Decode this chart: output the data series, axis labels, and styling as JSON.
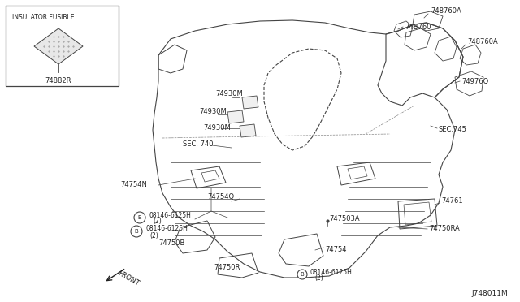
{
  "diagram_id": "J748011M",
  "bg_color": "#ffffff",
  "line_color": "#444444",
  "text_color": "#222222",
  "inset_label": "INSULATOR FUSIBLE",
  "inset_part": "74882R",
  "figsize": [
    6.4,
    3.72
  ],
  "dpi": 100
}
